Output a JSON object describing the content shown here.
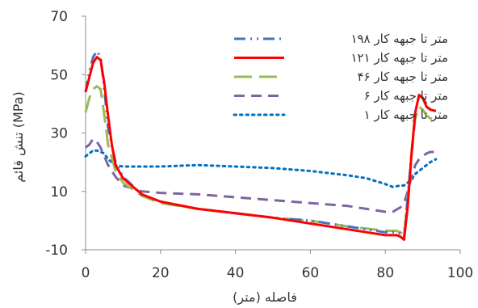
{
  "chart_data": {
    "type": "line",
    "title": "",
    "xlabel": "فاصله (متر)",
    "ylabel": "تنش قائم (MPa)",
    "xlim": [
      0,
      100
    ],
    "ylim": [
      -10,
      70
    ],
    "xticks": [
      "0",
      "20",
      "40",
      "60",
      "80",
      "100"
    ],
    "yticks": [
      "-10",
      "10",
      "30",
      "50",
      "70"
    ],
    "grid": false,
    "legend_position": "top-right",
    "series": [
      {
        "name": "۱۹۸ متر تا جبهه کار",
        "color": "#4472C4",
        "dash": "dash-dot-dot",
        "x": [
          0,
          1,
          2,
          3,
          4,
          5,
          6,
          8,
          10,
          15,
          20,
          30,
          40,
          50,
          60,
          70,
          80,
          83,
          84,
          85,
          86,
          87,
          88,
          89,
          90,
          91,
          92,
          93.5
        ],
        "y": [
          44,
          51,
          56,
          58,
          56,
          45,
          32,
          20,
          15,
          9,
          6.5,
          4,
          2.5,
          1,
          0,
          -2,
          -4,
          -4,
          -4.5,
          -6,
          8,
          23,
          37,
          43,
          42,
          40,
          38,
          37.5
        ]
      },
      {
        "name": "۱۲۱ متر تا جبهه کار",
        "color": "#FF0000",
        "dash": "solid",
        "x": [
          0,
          1,
          2,
          3,
          4,
          5,
          6,
          7,
          8,
          10,
          15,
          20,
          30,
          40,
          50,
          60,
          70,
          80,
          83,
          84,
          85,
          86,
          87,
          88,
          89,
          90,
          91,
          92,
          93.5
        ],
        "y": [
          44,
          49,
          54,
          56,
          55,
          47,
          36,
          26,
          19,
          14.5,
          9,
          6.5,
          4,
          2.5,
          1,
          -1,
          -3,
          -5,
          -5,
          -5.5,
          -6.5,
          5,
          23,
          37,
          43,
          42,
          39,
          38,
          37.5
        ]
      },
      {
        "name": "۴۶ متر تا جبهه کار",
        "color": "#9BBB59",
        "dash": "long-dash",
        "x": [
          0,
          1,
          2,
          3,
          4,
          5,
          6,
          8,
          10,
          15,
          20,
          30,
          40,
          50,
          60,
          70,
          80,
          83,
          84,
          85,
          86,
          87,
          88,
          89,
          90,
          91,
          92,
          93.5
        ],
        "y": [
          37,
          42,
          45,
          46,
          45,
          36,
          26,
          17,
          13,
          8.5,
          6,
          4,
          2.5,
          1,
          0,
          -2,
          -3.5,
          -3.5,
          -4,
          -5,
          8,
          22,
          35,
          39,
          38,
          36,
          35,
          34.5
        ]
      },
      {
        "name": "۶ متر تا جبهه کار",
        "color": "#8064A2",
        "dash": "dash",
        "x": [
          0,
          1,
          2,
          3,
          4,
          5,
          6,
          8,
          10,
          15,
          20,
          30,
          40,
          50,
          60,
          70,
          80,
          82,
          84,
          85,
          86,
          87,
          88,
          89,
          90,
          91,
          92,
          93.5
        ],
        "y": [
          25,
          26,
          28,
          27,
          25,
          22,
          19,
          15,
          12,
          10,
          9.5,
          9,
          8,
          7,
          6,
          5,
          3,
          3,
          4.5,
          6,
          10,
          15,
          19,
          21,
          22,
          23,
          23.5,
          23.5
        ]
      },
      {
        "name": "۱ متر تا جبهه کار",
        "color": "#0070C0",
        "dash": "dot",
        "x": [
          0,
          1,
          2,
          3,
          4,
          5,
          6,
          8,
          10,
          15,
          20,
          30,
          40,
          50,
          60,
          70,
          75,
          80,
          82,
          84,
          85,
          86,
          87,
          88,
          90,
          92,
          93.5
        ],
        "y": [
          22,
          23,
          24,
          24,
          23.5,
          23,
          21,
          19,
          18.5,
          18.5,
          18.5,
          19,
          18.5,
          18,
          17,
          15.5,
          14.5,
          12.5,
          11.5,
          12,
          12,
          13,
          14,
          16,
          18,
          20,
          21
        ]
      }
    ]
  }
}
